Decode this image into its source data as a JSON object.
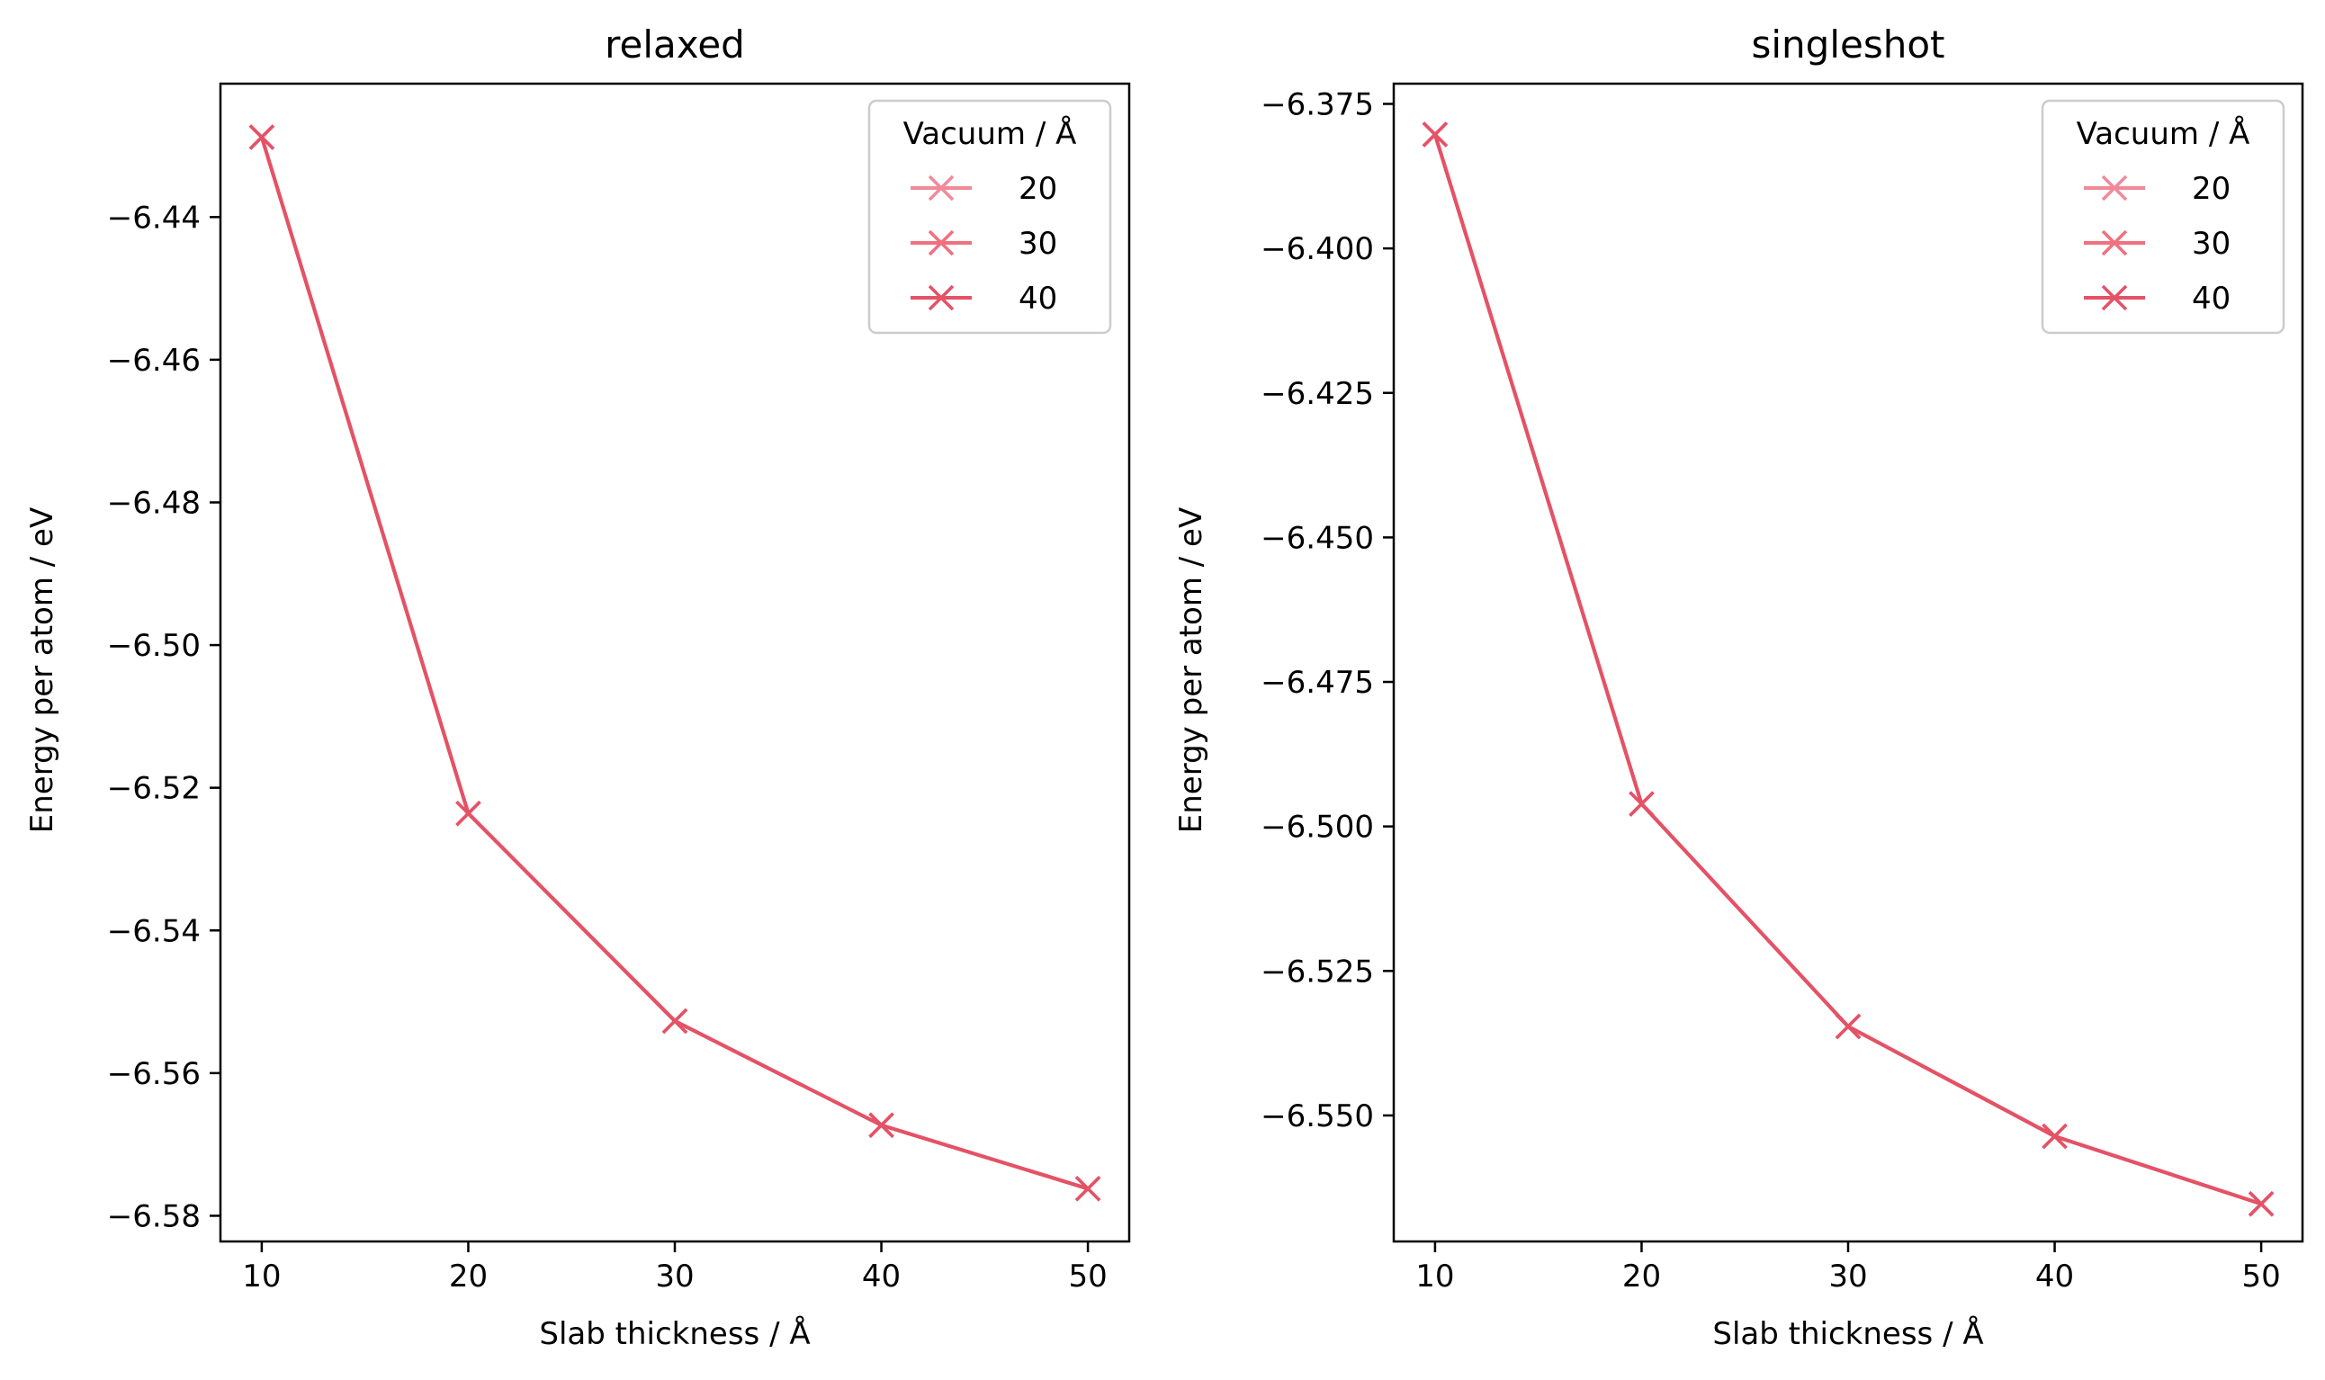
{
  "chart_data": [
    {
      "type": "line",
      "title": "relaxed",
      "xlabel": "Slab thickness / Å",
      "ylabel": "Energy per atom / eV",
      "x": [
        10,
        20,
        30,
        40,
        50
      ],
      "xticks": [
        10,
        20,
        30,
        40,
        50
      ],
      "xlim": [
        8,
        52
      ],
      "yticks": [
        -6.44,
        -6.46,
        -6.48,
        -6.5,
        -6.52,
        -6.54,
        -6.56,
        -6.58
      ],
      "ytick_labels": [
        "−6.44",
        "−6.46",
        "−6.48",
        "−6.50",
        "−6.52",
        "−6.54",
        "−6.56",
        "−6.58"
      ],
      "ylim": [
        -6.5836,
        -6.4213
      ],
      "legend": {
        "title": "Vacuum / Å",
        "position": "upper right"
      },
      "grid": false,
      "marker": "x",
      "series": [
        {
          "name": "20",
          "color": "#f08a99",
          "values": [
            -6.4288,
            -6.5236,
            -6.5527,
            -6.5673,
            -6.5762
          ]
        },
        {
          "name": "30",
          "color": "#f0707f",
          "values": [
            -6.4288,
            -6.5236,
            -6.5527,
            -6.5673,
            -6.5762
          ]
        },
        {
          "name": "40",
          "color": "#e45266",
          "values": [
            -6.4288,
            -6.5236,
            -6.5527,
            -6.5673,
            -6.5762
          ]
        }
      ]
    },
    {
      "type": "line",
      "title": "singleshot",
      "xlabel": "Slab thickness / Å",
      "ylabel": "Energy per atom / eV",
      "x": [
        10,
        20,
        30,
        40,
        50
      ],
      "xticks": [
        10,
        20,
        30,
        40,
        50
      ],
      "xlim": [
        8,
        52
      ],
      "yticks": [
        -6.375,
        -6.4,
        -6.425,
        -6.45,
        -6.475,
        -6.5,
        -6.525,
        -6.55
      ],
      "ytick_labels": [
        "−6.375",
        "−6.400",
        "−6.425",
        "−6.450",
        "−6.475",
        "−6.500",
        "−6.525",
        "−6.550"
      ],
      "ylim": [
        -6.5718,
        -6.3715
      ],
      "legend": {
        "title": "Vacuum / Å",
        "position": "upper right"
      },
      "grid": false,
      "marker": "x",
      "series": [
        {
          "name": "20",
          "color": "#f08a99",
          "values": [
            -6.3803,
            -6.4961,
            -6.5346,
            -6.5536,
            -6.5653
          ]
        },
        {
          "name": "30",
          "color": "#f0707f",
          "values": [
            -6.3803,
            -6.4961,
            -6.5346,
            -6.5536,
            -6.5653
          ]
        },
        {
          "name": "40",
          "color": "#e45266",
          "values": [
            -6.3803,
            -6.4961,
            -6.5346,
            -6.5536,
            -6.5653
          ]
        }
      ]
    }
  ]
}
